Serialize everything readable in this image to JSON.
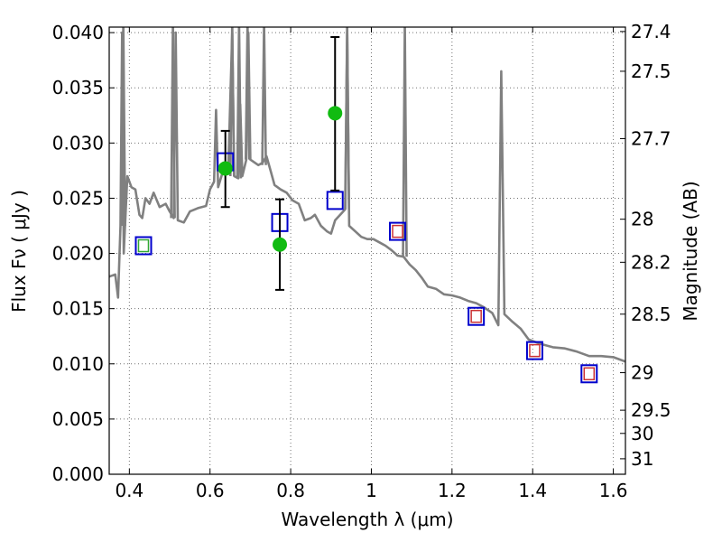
{
  "chart_data": {
    "type": "scatter",
    "xlabel": "Wavelength  λ (μm)",
    "ylabel": "Flux  Fν  ( μJy )",
    "y2label": "Magnitude (AB)",
    "xlim": [
      0.35,
      1.63
    ],
    "ylim": [
      0.0,
      0.0405
    ],
    "x_ticks": [
      0.4,
      0.6,
      0.8,
      1.0,
      1.2,
      1.4,
      1.6
    ],
    "x_tick_labels": [
      "0.4",
      "0.6",
      "0.8",
      "1",
      "1.2",
      "1.4",
      "1.6"
    ],
    "y_ticks": [
      0.0,
      0.005,
      0.01,
      0.015,
      0.02,
      0.025,
      0.03,
      0.035,
      0.04
    ],
    "y_tick_labels": [
      "0.000",
      "0.005",
      "0.010",
      "0.015",
      "0.020",
      "0.025",
      "0.030",
      "0.035",
      "0.040"
    ],
    "mag_ticks": [
      {
        "label": "27.4",
        "flux": 0.0401
      },
      {
        "label": "27.5",
        "flux": 0.0365
      },
      {
        "label": "27.7",
        "flux": 0.0304
      },
      {
        "label": "28",
        "flux": 0.0231
      },
      {
        "label": "28.2",
        "flux": 0.0192
      },
      {
        "label": "28.5",
        "flux": 0.0145
      },
      {
        "label": "29",
        "flux": 0.0092
      },
      {
        "label": "29.5",
        "flux": 0.0058
      },
      {
        "label": "30",
        "flux": 0.0037
      },
      {
        "label": "31",
        "flux": 0.0014
      }
    ],
    "grid": true,
    "series": [
      {
        "style": "sed-line",
        "color": "#808080",
        "points": [
          [
            0.35,
            0.0179
          ],
          [
            0.365,
            0.0181
          ],
          [
            0.372,
            0.016
          ],
          [
            0.378,
            0.0225
          ],
          [
            0.382,
            0.04
          ],
          [
            0.386,
            0.02
          ],
          [
            0.395,
            0.027
          ],
          [
            0.405,
            0.026
          ],
          [
            0.415,
            0.0258
          ],
          [
            0.425,
            0.0235
          ],
          [
            0.432,
            0.0232
          ],
          [
            0.44,
            0.025
          ],
          [
            0.45,
            0.0245
          ],
          [
            0.46,
            0.0255
          ],
          [
            0.475,
            0.0242
          ],
          [
            0.49,
            0.0245
          ],
          [
            0.5,
            0.0238
          ],
          [
            0.51,
            0.0232
          ],
          [
            0.515,
            0.04
          ],
          [
            0.52,
            0.023
          ],
          [
            0.535,
            0.0228
          ],
          [
            0.55,
            0.0238
          ],
          [
            0.57,
            0.0241
          ],
          [
            0.59,
            0.0243
          ],
          [
            0.6,
            0.0258
          ],
          [
            0.61,
            0.0265
          ],
          [
            0.615,
            0.033
          ],
          [
            0.62,
            0.026
          ],
          [
            0.63,
            0.0272
          ],
          [
            0.645,
            0.0272
          ],
          [
            0.655,
            0.04
          ],
          [
            0.66,
            0.027
          ],
          [
            0.67,
            0.0268
          ],
          [
            0.675,
            0.0335
          ],
          [
            0.68,
            0.027
          ],
          [
            0.69,
            0.0285
          ],
          [
            0.695,
            0.04
          ],
          [
            0.7,
            0.0285
          ],
          [
            0.72,
            0.028
          ],
          [
            0.73,
            0.0282
          ],
          [
            0.74,
            0.0288
          ],
          [
            0.75,
            0.0275
          ],
          [
            0.76,
            0.0262
          ],
          [
            0.775,
            0.0258
          ],
          [
            0.79,
            0.0255
          ],
          [
            0.805,
            0.0248
          ],
          [
            0.82,
            0.0245
          ],
          [
            0.835,
            0.023
          ],
          [
            0.85,
            0.0232
          ],
          [
            0.86,
            0.0235
          ],
          [
            0.875,
            0.0225
          ],
          [
            0.89,
            0.022
          ],
          [
            0.9,
            0.0218
          ],
          [
            0.91,
            0.023
          ],
          [
            0.925,
            0.0236
          ],
          [
            0.935,
            0.024
          ],
          [
            0.94,
            0.04
          ],
          [
            0.945,
            0.0225
          ],
          [
            0.96,
            0.022
          ],
          [
            0.975,
            0.0215
          ],
          [
            0.99,
            0.0213
          ],
          [
            1.005,
            0.0213
          ],
          [
            1.02,
            0.021
          ],
          [
            1.035,
            0.0207
          ],
          [
            1.05,
            0.0203
          ],
          [
            1.065,
            0.0198
          ],
          [
            1.08,
            0.0197
          ],
          [
            1.095,
            0.019
          ],
          [
            1.11,
            0.0185
          ],
          [
            1.125,
            0.0178
          ],
          [
            1.14,
            0.017
          ],
          [
            1.16,
            0.0168
          ],
          [
            1.18,
            0.0163
          ],
          [
            1.2,
            0.0162
          ],
          [
            1.22,
            0.016
          ],
          [
            1.24,
            0.0157
          ],
          [
            1.26,
            0.0155
          ],
          [
            1.28,
            0.0151
          ],
          [
            1.3,
            0.0146
          ],
          [
            1.315,
            0.0135
          ],
          [
            1.322,
            0.0365
          ],
          [
            1.33,
            0.0145
          ],
          [
            1.35,
            0.0138
          ],
          [
            1.37,
            0.0132
          ],
          [
            1.39,
            0.0122
          ],
          [
            1.42,
            0.0118
          ],
          [
            1.45,
            0.0115
          ],
          [
            1.48,
            0.0114
          ],
          [
            1.51,
            0.0111
          ],
          [
            1.54,
            0.0107
          ],
          [
            1.57,
            0.0107
          ],
          [
            1.6,
            0.0106
          ],
          [
            1.63,
            0.0102
          ]
        ],
        "spikes": [
          {
            "x": 0.385,
            "base": 0.0225
          },
          {
            "x": 0.508,
            "base": 0.0232
          },
          {
            "x": 0.655,
            "base": 0.027
          },
          {
            "x": 0.672,
            "base": 0.0268
          },
          {
            "x": 0.693,
            "base": 0.0285
          },
          {
            "x": 0.734,
            "base": 0.028
          },
          {
            "x": 0.94,
            "base": 0.024
          },
          {
            "x": 1.083,
            "base": 0.0197
          }
        ]
      },
      {
        "style": "model-squares",
        "color": "#0000cc",
        "points": [
          [
            0.435,
            0.0207
          ],
          [
            0.638,
            0.0283
          ],
          [
            0.773,
            0.0228
          ],
          [
            0.91,
            0.0248
          ],
          [
            1.065,
            0.022
          ],
          [
            1.26,
            0.0143
          ],
          [
            1.405,
            0.0112
          ],
          [
            1.54,
            0.0091
          ]
        ]
      },
      {
        "style": "inner-squares",
        "colors": [
          "#33aa33",
          "",
          "",
          "",
          "#cc3333",
          "#cc3333",
          "#cc3333",
          "#cc3333"
        ],
        "points": [
          [
            0.435,
            0.0207
          ],
          [
            1.065,
            0.022
          ],
          [
            1.26,
            0.0143
          ],
          [
            1.405,
            0.0112
          ],
          [
            1.54,
            0.0091
          ]
        ]
      },
      {
        "style": "measured-points",
        "color": "#11bb11",
        "points": [
          {
            "x": 0.638,
            "y": 0.0277,
            "ylo": 0.0242,
            "yhi": 0.0311
          },
          {
            "x": 0.773,
            "y": 0.0208,
            "ylo": 0.0167,
            "yhi": 0.0249
          },
          {
            "x": 0.91,
            "y": 0.0327,
            "ylo": 0.0257,
            "yhi": 0.0396
          }
        ]
      }
    ]
  }
}
